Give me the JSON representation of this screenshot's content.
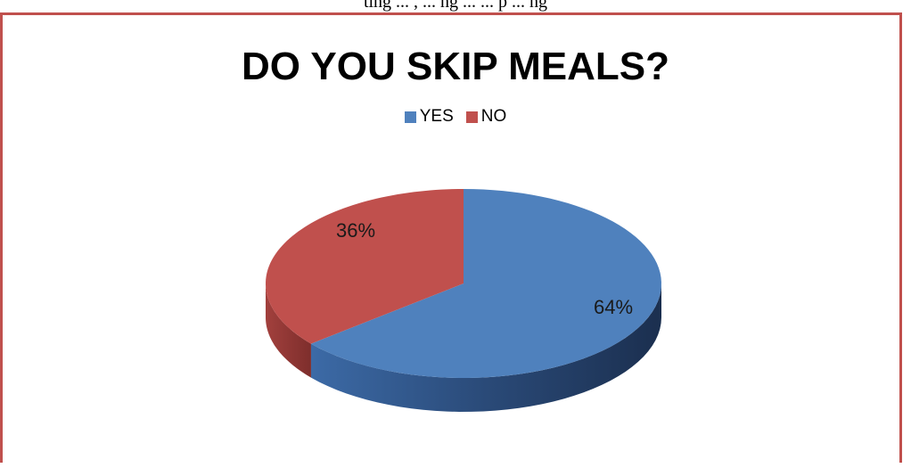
{
  "page": {
    "top_text": "ting ... , ... ng ... ... p ... ng"
  },
  "chart_data": {
    "type": "pie",
    "title": "DO YOU SKIP MEALS?",
    "legend_position": "top",
    "categories": [
      "YES",
      "NO"
    ],
    "values": [
      64,
      36
    ],
    "data_labels": [
      "64%",
      "36%"
    ],
    "colors": {
      "YES": "#4f81bd",
      "NO": "#c0504d"
    }
  }
}
